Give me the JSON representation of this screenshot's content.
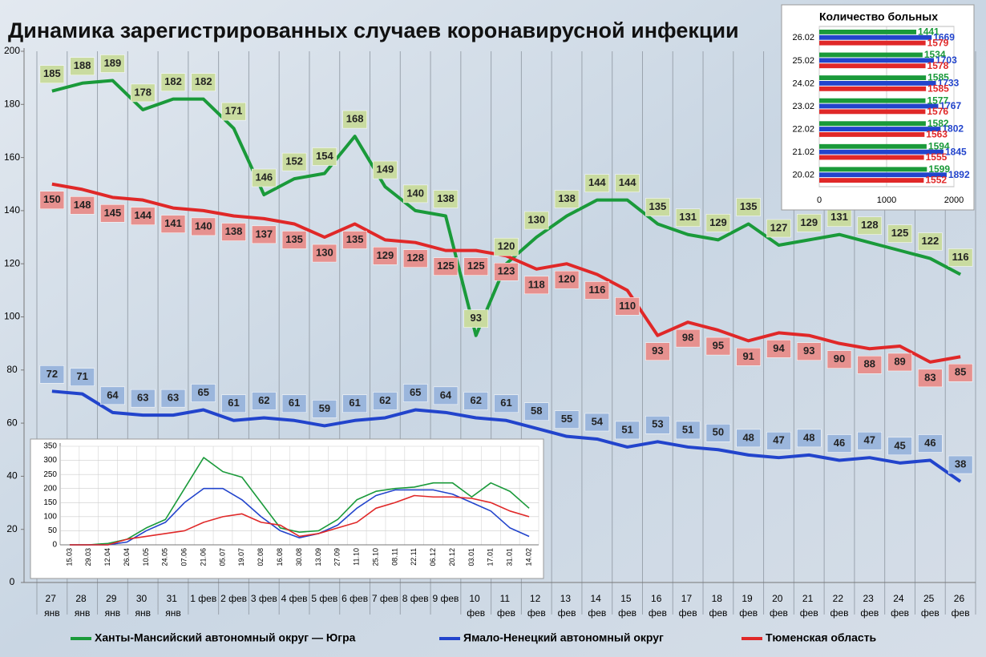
{
  "chart_data": [
    {
      "type": "line",
      "title": "Динамика зарегистрированных случаев коронавирусной инфекции",
      "categories": [
        "27 янв",
        "28 янв",
        "29 янв",
        "30 янв",
        "31 янв",
        "1 фев",
        "2 фев",
        "3 фев",
        "4 фев",
        "5 фев",
        "6 фев",
        "7 фев",
        "8 фев",
        "9 фев",
        "10 фев",
        "11 фев",
        "12 фев",
        "13 фев",
        "14 фев",
        "15 фев",
        "16 фев",
        "17 фев",
        "18 фев",
        "19 фев",
        "20 фев",
        "21 фев",
        "22 фев",
        "23 фев",
        "24 фев",
        "25 фев",
        "26 фев"
      ],
      "series": [
        {
          "name": "Ханты-Мансийский автономный округ — Югра",
          "color": "#1a9a3a",
          "label_color": "#c9dba0",
          "values": [
            185,
            188,
            189,
            178,
            182,
            182,
            171,
            146,
            152,
            154,
            168,
            149,
            140,
            138,
            93,
            120,
            130,
            138,
            144,
            144,
            135,
            131,
            129,
            135,
            127,
            129,
            131,
            128,
            125,
            122,
            116
          ]
        },
        {
          "name": "Ямало-Ненецкий автономный округ",
          "color": "#2244cc",
          "label_color": "#9bb6dc",
          "values": [
            72,
            71,
            64,
            63,
            63,
            65,
            61,
            62,
            61,
            59,
            61,
            62,
            65,
            64,
            62,
            61,
            58,
            55,
            54,
            51,
            53,
            51,
            50,
            48,
            47,
            48,
            46,
            47,
            45,
            46,
            38
          ]
        },
        {
          "name": "Тюменская область",
          "color": "#e02828",
          "label_color": "#e6918f",
          "values": [
            150,
            148,
            145,
            144,
            141,
            140,
            138,
            137,
            135,
            130,
            135,
            129,
            128,
            125,
            125,
            123,
            118,
            120,
            116,
            110,
            93,
            98,
            95,
            91,
            94,
            93,
            90,
            88,
            89,
            83,
            85
          ]
        }
      ],
      "ylim": [
        0,
        200
      ],
      "yticks": [
        0,
        20,
        40,
        60,
        80,
        100,
        120,
        140,
        160,
        180,
        200
      ],
      "legend": "bottom"
    },
    {
      "type": "bar",
      "orientation": "horizontal",
      "title": "Количество больных",
      "categories": [
        "26.02",
        "25.02",
        "24.02",
        "23.02",
        "22.02",
        "21.02",
        "20.02"
      ],
      "series": [
        {
          "color": "#1a9a3a",
          "values": [
            1441,
            1534,
            1585,
            1577,
            1582,
            1594,
            1599
          ]
        },
        {
          "color": "#2244cc",
          "values": [
            1669,
            1703,
            1733,
            1767,
            1802,
            1845,
            1892
          ]
        },
        {
          "color": "#e02828",
          "values": [
            1579,
            1578,
            1585,
            1576,
            1563,
            1555,
            1552
          ]
        }
      ],
      "xlim": [
        0,
        2000
      ],
      "xticks": [
        0,
        1000,
        2000
      ],
      "grid": true
    },
    {
      "type": "line",
      "categories": [
        "15.03",
        "29.03",
        "12.04",
        "26.04",
        "10.05",
        "24.05",
        "07.06",
        "21.06",
        "05.07",
        "19.07",
        "02.08",
        "16.08",
        "30.08",
        "13.09",
        "27.09",
        "11.10",
        "25.10",
        "08.11",
        "22.11",
        "06.12",
        "20.12",
        "03.01",
        "17.01",
        "31.01",
        "14.02"
      ],
      "series": [
        {
          "color": "#1a9a3a",
          "values": [
            0,
            0,
            5,
            20,
            60,
            90,
            200,
            310,
            260,
            240,
            150,
            60,
            45,
            50,
            90,
            160,
            190,
            200,
            205,
            220,
            220,
            170,
            220,
            190,
            130
          ]
        },
        {
          "color": "#2244cc",
          "values": [
            0,
            0,
            0,
            10,
            50,
            80,
            150,
            200,
            200,
            160,
            100,
            50,
            25,
            40,
            70,
            130,
            175,
            195,
            195,
            195,
            180,
            150,
            120,
            60,
            30
          ]
        },
        {
          "color": "#e02828",
          "values": [
            0,
            0,
            0,
            20,
            30,
            40,
            50,
            80,
            100,
            110,
            80,
            70,
            30,
            40,
            60,
            80,
            130,
            150,
            175,
            170,
            170,
            165,
            150,
            120,
            100
          ]
        }
      ],
      "ylim": [
        0,
        350
      ],
      "yticks": [
        0,
        50,
        100,
        150,
        200,
        250,
        300,
        350
      ],
      "grid": true
    }
  ]
}
